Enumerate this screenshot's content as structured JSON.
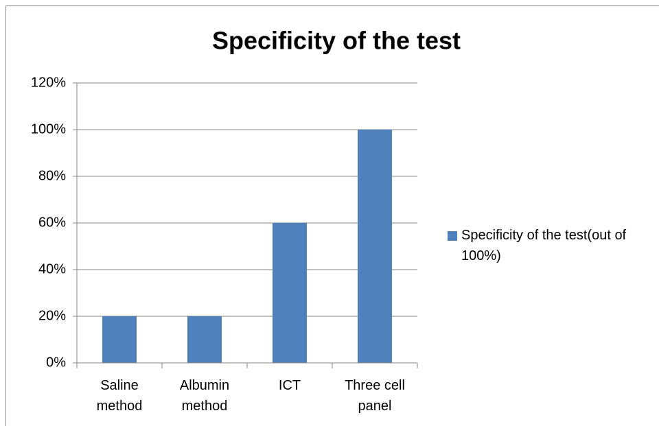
{
  "chart_data": {
    "type": "bar",
    "title": "Specificity of the test",
    "categories": [
      "Saline method",
      "Albumin method",
      "ICT",
      "Three cell panel"
    ],
    "series": [
      {
        "name": "Specificity of the test(out of 100%)",
        "color": "#4f81bd",
        "values": [
          20,
          20,
          60,
          100
        ]
      }
    ],
    "ylim": [
      0,
      120
    ],
    "yticks": [
      {
        "value": 0,
        "label": "0%"
      },
      {
        "value": 20,
        "label": "20%"
      },
      {
        "value": 40,
        "label": "40%"
      },
      {
        "value": 60,
        "label": "60%"
      },
      {
        "value": 80,
        "label": "80%"
      },
      {
        "value": 100,
        "label": "100%"
      },
      {
        "value": 120,
        "label": "120%"
      }
    ],
    "grid": true,
    "legend": "right"
  }
}
